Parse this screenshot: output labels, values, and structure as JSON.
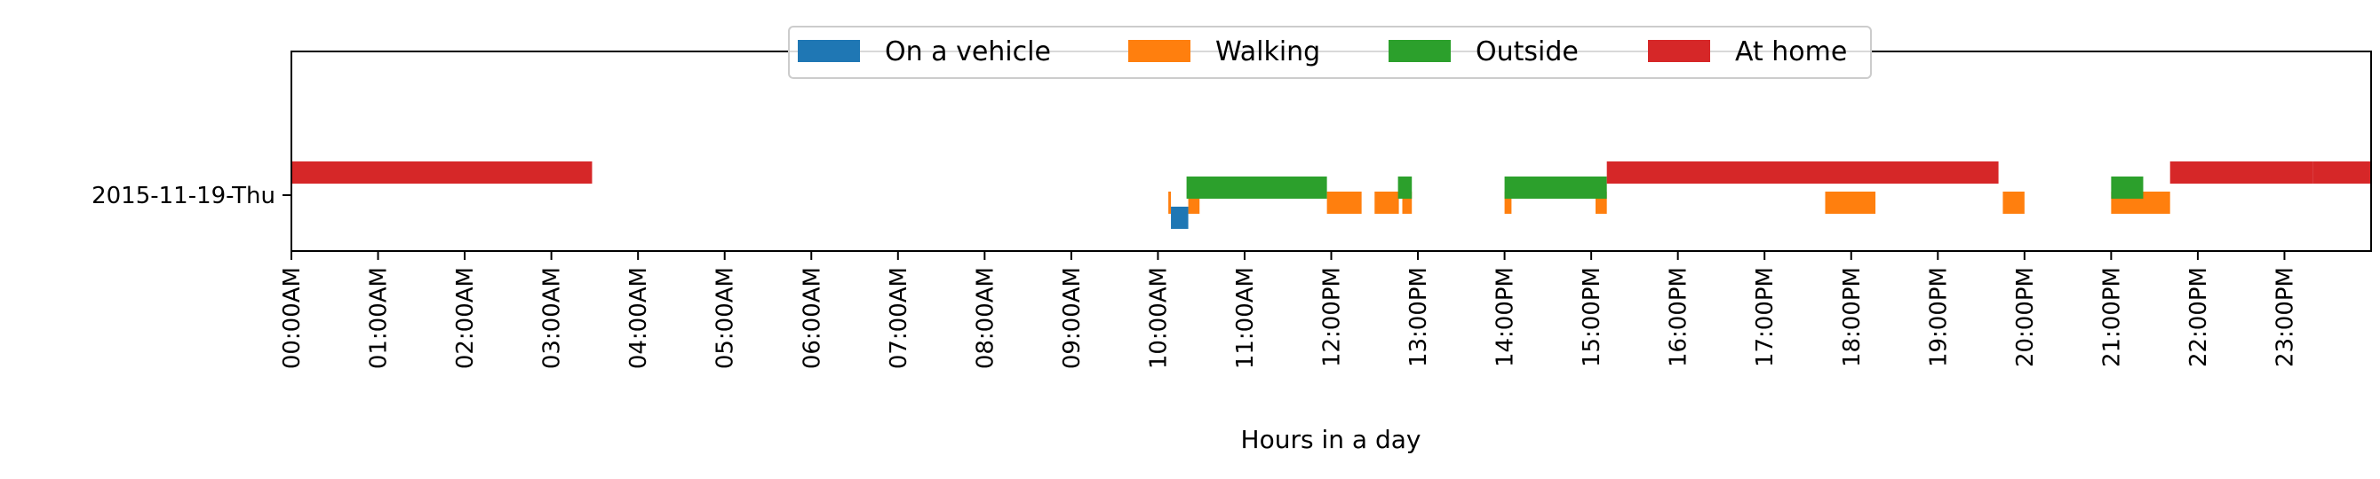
{
  "chart_data": {
    "type": "timeline",
    "title": "",
    "xlabel": "Hours in a day",
    "ylabel": "",
    "xlim": [
      0,
      24
    ],
    "categories": [
      "2015-11-19-Thu"
    ],
    "x_ticks": [
      0,
      1,
      2,
      3,
      4,
      5,
      6,
      7,
      8,
      9,
      10,
      11,
      12,
      13,
      14,
      15,
      16,
      17,
      18,
      19,
      20,
      21,
      22,
      23
    ],
    "x_tick_labels": [
      "00:00AM",
      "01:00AM",
      "02:00AM",
      "03:00AM",
      "04:00AM",
      "05:00AM",
      "06:00AM",
      "07:00AM",
      "08:00AM",
      "09:00AM",
      "10:00AM",
      "11:00AM",
      "12:00PM",
      "13:00PM",
      "14:00PM",
      "15:00PM",
      "16:00PM",
      "17:00PM",
      "18:00PM",
      "19:00PM",
      "20:00PM",
      "21:00PM",
      "22:00PM",
      "23:00PM"
    ],
    "legend_position": "top-center",
    "grid": false,
    "series": [
      {
        "name": "On a vehicle",
        "color": "#1f77b4",
        "intervals": [
          [
            10.15,
            10.35
          ]
        ]
      },
      {
        "name": "Walking",
        "color": "#ff7f0e",
        "intervals": [
          [
            10.12,
            10.15
          ],
          [
            10.35,
            10.48
          ],
          [
            11.95,
            12.35
          ],
          [
            12.5,
            12.78
          ],
          [
            12.82,
            12.93
          ],
          [
            14.0,
            14.08
          ],
          [
            15.05,
            15.18
          ],
          [
            17.7,
            18.28
          ],
          [
            19.75,
            20.0
          ],
          [
            21.0,
            21.68
          ]
        ]
      },
      {
        "name": "Outside",
        "color": "#2ca02c",
        "intervals": [
          [
            10.33,
            11.95
          ],
          [
            12.77,
            12.93
          ],
          [
            14.0,
            15.18
          ],
          [
            21.0,
            21.37
          ]
        ]
      },
      {
        "name": "At home",
        "color": "#d62728",
        "intervals": [
          [
            0.0,
            3.47
          ],
          [
            15.18,
            19.7
          ],
          [
            21.68,
            23.33
          ],
          [
            23.33,
            24.0
          ]
        ]
      }
    ]
  }
}
